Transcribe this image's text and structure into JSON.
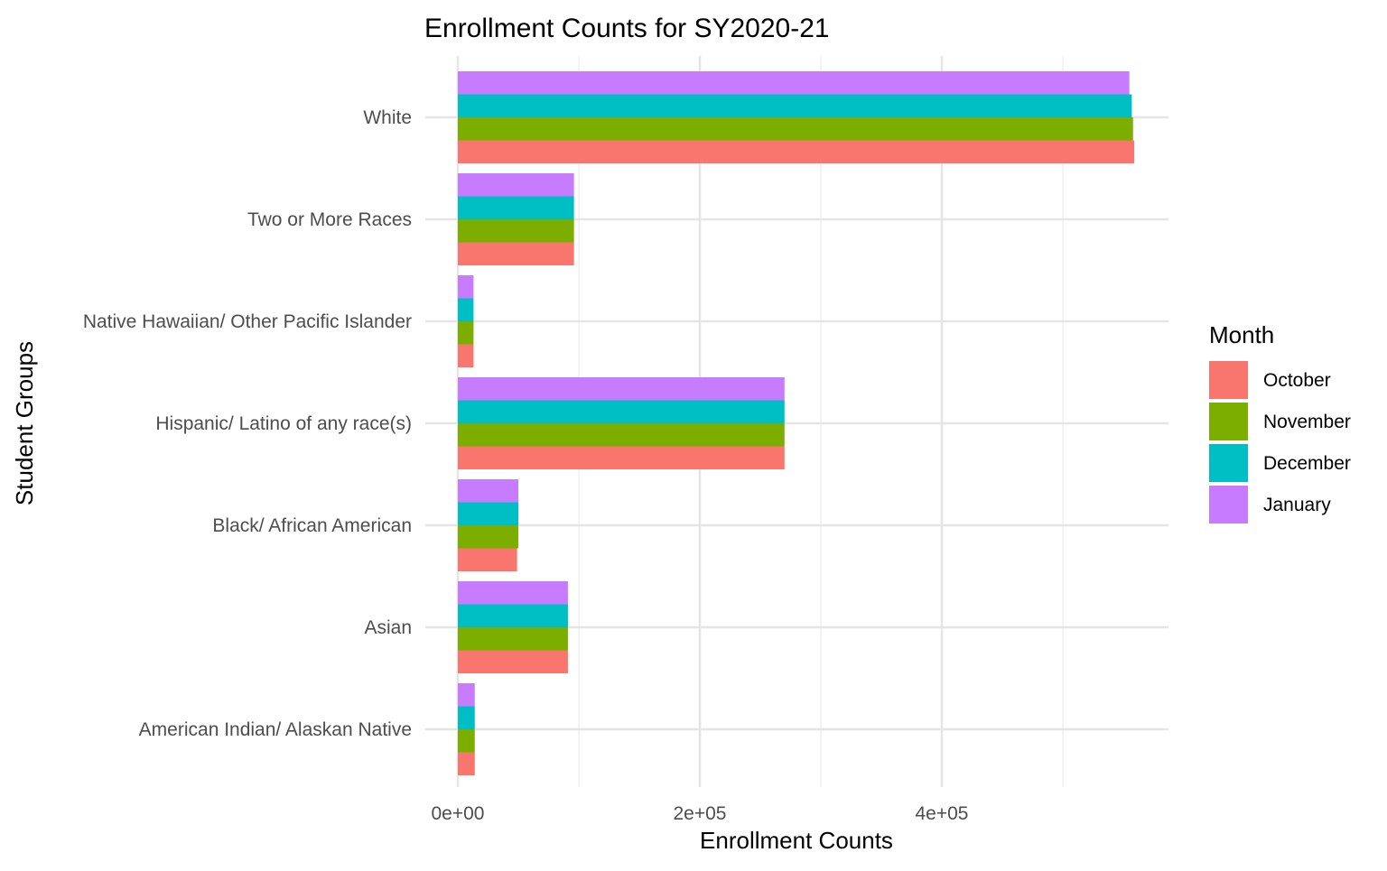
{
  "chart_data": {
    "type": "bar",
    "orientation": "horizontal",
    "title": "Enrollment Counts for SY2020-21",
    "xlabel": "Enrollment Counts",
    "ylabel": "Student Groups",
    "xlim": [
      0,
      587000
    ],
    "x_ticks": [
      0,
      200000,
      400000
    ],
    "x_tick_labels": [
      "0e+00",
      "2e+05",
      "4e+05"
    ],
    "grid": true,
    "legend_title": "Month",
    "legend_position": "right",
    "categories": [
      "American Indian/ Alaskan Native",
      "Asian",
      "Black/ African American",
      "Hispanic/ Latino of any race(s)",
      "Native Hawaiian/ Other Pacific Islander",
      "Two or More Races",
      "White"
    ],
    "series": [
      {
        "name": "October",
        "color": "#F8766D",
        "values": [
          14000,
          91000,
          49000,
          270000,
          13000,
          96000,
          559000
        ]
      },
      {
        "name": "November",
        "color": "#7CAE00",
        "values": [
          14000,
          91000,
          50000,
          270000,
          13000,
          96000,
          558000
        ]
      },
      {
        "name": "December",
        "color": "#00BFC4",
        "values": [
          14000,
          91000,
          50000,
          270000,
          13000,
          96000,
          557000
        ]
      },
      {
        "name": "January",
        "color": "#C77CFF",
        "values": [
          14000,
          91000,
          50000,
          270000,
          13000,
          96000,
          555000
        ]
      }
    ]
  }
}
